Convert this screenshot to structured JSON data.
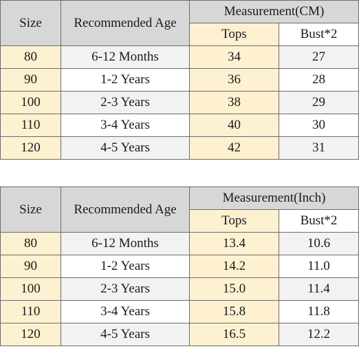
{
  "tables": [
    {
      "headers": {
        "size": "Size",
        "age": "Recommended Age",
        "measurement": "Measurement(CM)",
        "tops": "Tops",
        "bust": "Bust*2"
      },
      "rows": [
        {
          "size": "80",
          "age": "6-12 Months",
          "tops": "34",
          "bust": "27"
        },
        {
          "size": "90",
          "age": "1-2 Years",
          "tops": "36",
          "bust": "28"
        },
        {
          "size": "100",
          "age": "2-3 Years",
          "tops": "38",
          "bust": "29"
        },
        {
          "size": "110",
          "age": "3-4 Years",
          "tops": "40",
          "bust": "30"
        },
        {
          "size": "120",
          "age": "4-5 Years",
          "tops": "42",
          "bust": "31"
        }
      ]
    },
    {
      "headers": {
        "size": "Size",
        "age": "Recommended Age",
        "measurement": "Measurement(Inch)",
        "tops": "Tops",
        "bust": "Bust*2"
      },
      "rows": [
        {
          "size": "80",
          "age": "6-12 Months",
          "tops": "13.4",
          "bust": "10.6"
        },
        {
          "size": "90",
          "age": "1-2 Years",
          "tops": "14.2",
          "bust": "11.0"
        },
        {
          "size": "100",
          "age": "2-3 Years",
          "tops": "15.0",
          "bust": "11.4"
        },
        {
          "size": "110",
          "age": "3-4 Years",
          "tops": "15.8",
          "bust": "11.8"
        },
        {
          "size": "120",
          "age": "4-5 Years",
          "tops": "16.5",
          "bust": "12.2"
        }
      ]
    }
  ]
}
